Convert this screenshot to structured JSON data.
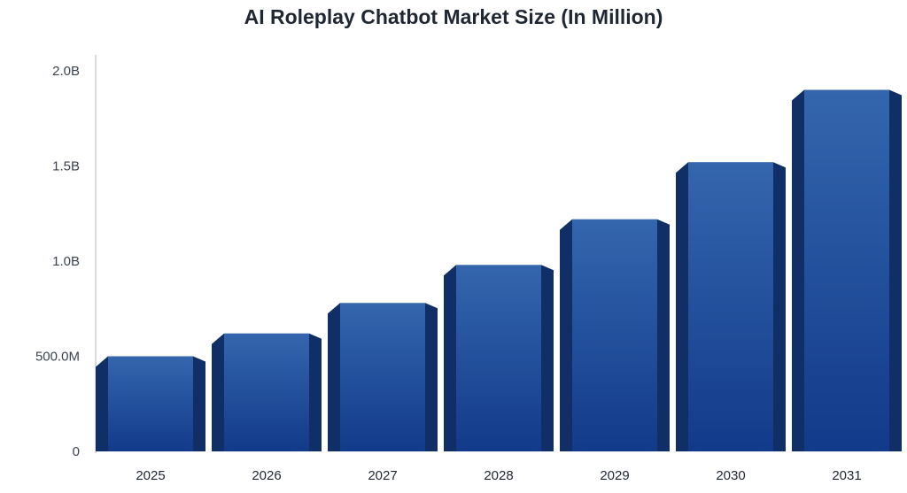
{
  "chart_data": {
    "type": "bar",
    "title": "AI Roleplay Chatbot Market Size (In Million)",
    "xlabel": "",
    "ylabel": "",
    "categories": [
      "2025",
      "2026",
      "2027",
      "2028",
      "2029",
      "2030",
      "2031"
    ],
    "values": [
      500,
      620,
      780,
      980,
      1220,
      1520,
      1900
    ],
    "ylim": [
      0,
      2000
    ],
    "yticks": [
      {
        "value": 0,
        "label": "0"
      },
      {
        "value": 500,
        "label": "500.0M"
      },
      {
        "value": 1000,
        "label": "1.0B"
      },
      {
        "value": 1500,
        "label": "1.5B"
      },
      {
        "value": 2000,
        "label": "2.0B"
      }
    ],
    "grid": false,
    "legend": "none",
    "colors": {
      "bar_top": "#3466ad",
      "bar_bottom": "#123a8a",
      "bar_side": "#0f2f66",
      "axis": "#c8cfd8"
    }
  }
}
